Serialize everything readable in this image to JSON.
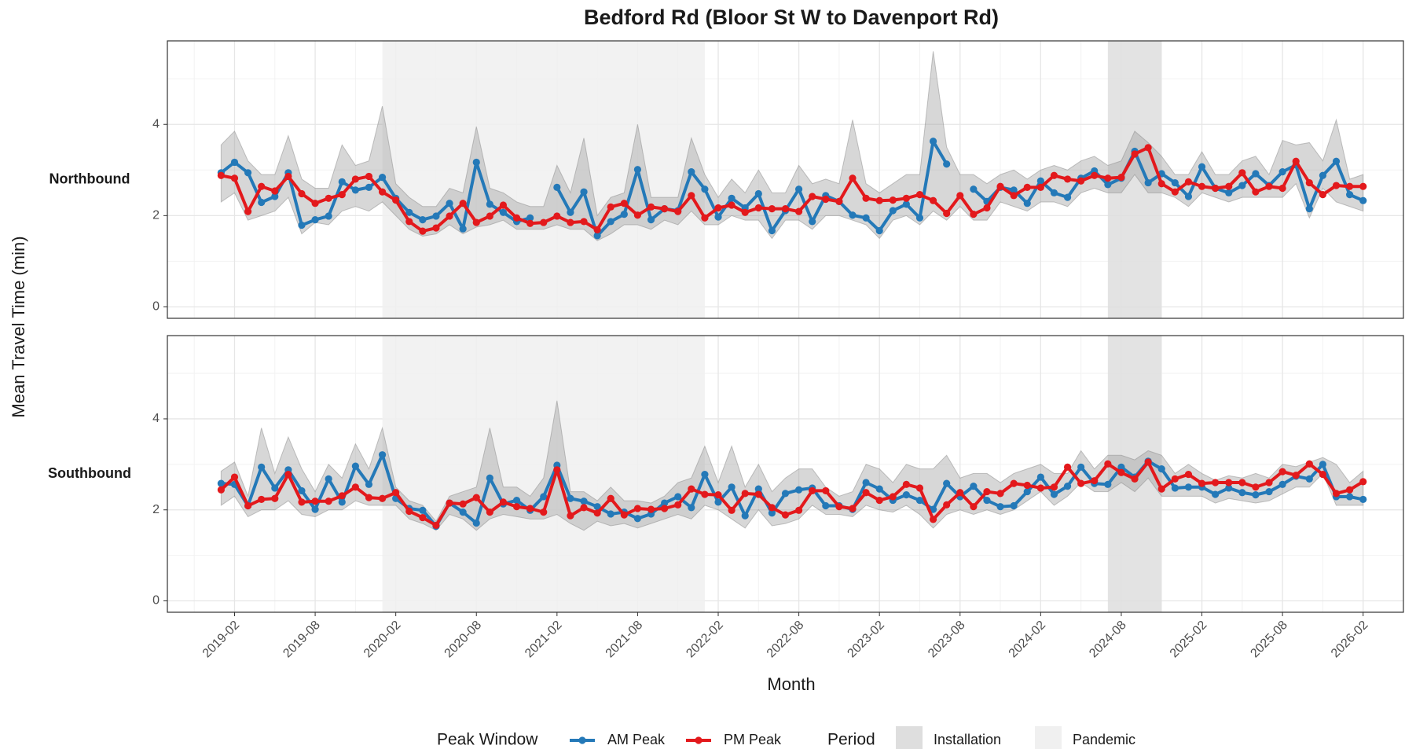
{
  "chart_data": {
    "type": "line",
    "title": "Bedford Rd (Bloor St W to Davenport Rd)",
    "x_label": "Month",
    "y_label": "Mean Travel Time (min)",
    "x": [
      "2019-01",
      "2019-02",
      "2019-03",
      "2019-04",
      "2019-05",
      "2019-06",
      "2019-07",
      "2019-08",
      "2019-09",
      "2019-10",
      "2019-11",
      "2019-12",
      "2020-01",
      "2020-02",
      "2020-03",
      "2020-04",
      "2020-05",
      "2020-06",
      "2020-07",
      "2020-08",
      "2020-09",
      "2020-10",
      "2020-11",
      "2020-12",
      "2021-01",
      "2021-02",
      "2021-03",
      "2021-04",
      "2021-05",
      "2021-06",
      "2021-07",
      "2021-08",
      "2021-09",
      "2021-10",
      "2021-11",
      "2021-12",
      "2022-01",
      "2022-02",
      "2022-03",
      "2022-04",
      "2022-05",
      "2022-06",
      "2022-07",
      "2022-08",
      "2022-09",
      "2022-10",
      "2022-11",
      "2022-12",
      "2023-01",
      "2023-02",
      "2023-03",
      "2023-04",
      "2023-05",
      "2023-06",
      "2023-07",
      "2023-08",
      "2023-09",
      "2023-10",
      "2023-11",
      "2023-12",
      "2024-01",
      "2024-02",
      "2024-03",
      "2024-04",
      "2024-05",
      "2024-06",
      "2024-07",
      "2024-08",
      "2024-09",
      "2024-10",
      "2024-11",
      "2024-12",
      "2025-01",
      "2025-02",
      "2025-03",
      "2025-04",
      "2025-05",
      "2025-06",
      "2025-07",
      "2025-08",
      "2025-09",
      "2025-10",
      "2025-11",
      "2025-12",
      "2026-01",
      "2026-02"
    ],
    "xlim": [
      "2018-09",
      "2026-05"
    ],
    "xticks": [
      "2019-02",
      "2019-08",
      "2020-02",
      "2020-08",
      "2021-02",
      "2021-08",
      "2022-02",
      "2022-08",
      "2023-02",
      "2023-08",
      "2024-02",
      "2024-08",
      "2025-02",
      "2025-08",
      "2026-02"
    ],
    "grid": true,
    "legend_title": "Peak Window",
    "period_legend_title": "Period",
    "periods": [
      {
        "name": "Installation",
        "start": "2024-07",
        "end": "2024-11",
        "color": "#dedede"
      },
      {
        "name": "Pandemic",
        "start": "2020-01",
        "end": "2022-01",
        "color": "#f0f0f0"
      }
    ],
    "panels": [
      {
        "label": "Northbound",
        "ylim": [
          -0.25,
          5.83
        ],
        "yticks": [
          0,
          2,
          4
        ],
        "band_upper": [
          3.55,
          3.85,
          3.2,
          2.9,
          2.9,
          3.75,
          2.8,
          2.6,
          2.6,
          3.55,
          3.1,
          3.2,
          4.4,
          2.7,
          2.4,
          2.2,
          2.2,
          2.6,
          2.5,
          3.95,
          2.6,
          2.5,
          2.3,
          2.2,
          2.2,
          3.1,
          2.5,
          3.7,
          2.0,
          2.4,
          2.5,
          4.0,
          2.4,
          2.4,
          2.4,
          3.7,
          2.9,
          2.4,
          2.8,
          2.5,
          3.0,
          2.5,
          2.5,
          3.1,
          2.7,
          2.8,
          2.7,
          4.1,
          2.7,
          2.5,
          2.7,
          2.9,
          2.9,
          5.6,
          3.5,
          2.9,
          2.9,
          2.7,
          2.9,
          3.0,
          2.8,
          3.0,
          3.1,
          3.0,
          3.2,
          3.3,
          3.1,
          3.2,
          3.85,
          3.6,
          3.3,
          2.9,
          2.9,
          3.4,
          2.9,
          2.9,
          3.2,
          3.3,
          2.9,
          3.65,
          3.55,
          3.6,
          3.2,
          4.1,
          2.8,
          2.9
        ],
        "band_lower": [
          2.3,
          2.5,
          1.9,
          2.0,
          2.1,
          2.4,
          1.6,
          1.85,
          1.8,
          2.1,
          2.2,
          2.1,
          2.3,
          2.0,
          1.7,
          1.55,
          1.6,
          1.8,
          1.6,
          1.75,
          1.8,
          1.9,
          1.7,
          1.7,
          1.7,
          1.8,
          1.7,
          1.7,
          1.45,
          1.6,
          1.8,
          1.8,
          1.7,
          1.9,
          1.8,
          2.1,
          1.8,
          1.8,
          2.0,
          1.9,
          1.9,
          1.5,
          1.9,
          1.9,
          1.7,
          2.0,
          2.0,
          1.9,
          1.8,
          1.5,
          1.9,
          2.0,
          1.8,
          2.1,
          1.9,
          2.2,
          1.9,
          1.9,
          2.3,
          2.2,
          2.1,
          2.3,
          2.3,
          2.2,
          2.5,
          2.6,
          2.5,
          2.5,
          2.9,
          2.5,
          2.5,
          2.4,
          2.2,
          2.5,
          2.4,
          2.3,
          2.4,
          2.4,
          2.4,
          2.4,
          2.7,
          1.95,
          2.6,
          2.3,
          2.2,
          2.1
        ],
        "series": [
          {
            "name": "AM Peak",
            "color": "#2479b8",
            "values": [
              2.94,
              3.17,
              2.94,
              2.29,
              2.42,
              2.94,
              1.79,
              1.91,
              1.99,
              2.74,
              2.56,
              2.62,
              2.84,
              2.38,
              2.07,
              1.91,
              1.99,
              2.27,
              1.71,
              3.17,
              2.25,
              2.07,
              1.87,
              1.95,
              null,
              2.62,
              2.07,
              2.52,
              1.56,
              1.87,
              2.03,
              3.01,
              1.91,
              2.15,
              2.11,
              2.96,
              2.58,
              1.97,
              2.38,
              2.17,
              2.48,
              1.67,
              2.11,
              2.58,
              1.87,
              2.44,
              2.31,
              2.01,
              1.95,
              1.67,
              2.11,
              2.25,
              1.95,
              3.63,
              3.13,
              null,
              2.58,
              2.31,
              2.62,
              2.56,
              2.27,
              2.76,
              2.5,
              2.4,
              2.82,
              2.98,
              2.68,
              2.82,
              3.41,
              2.72,
              2.92,
              2.72,
              2.42,
              3.07,
              2.6,
              2.5,
              2.66,
              2.92,
              2.66,
              2.96,
              3.11,
              2.15,
              2.88,
              3.19,
              2.46,
              2.33
            ]
          },
          {
            "name": "PM Peak",
            "color": "#e3191c",
            "values": [
              2.88,
              2.82,
              2.09,
              2.64,
              2.54,
              2.86,
              2.48,
              2.27,
              2.38,
              2.46,
              2.8,
              2.86,
              2.52,
              2.34,
              1.87,
              1.66,
              1.73,
              1.99,
              2.27,
              1.85,
              1.99,
              2.23,
              1.95,
              1.83,
              1.85,
              1.99,
              1.85,
              1.87,
              1.69,
              2.19,
              2.27,
              2.01,
              2.19,
              2.15,
              2.09,
              2.44,
              1.95,
              2.17,
              2.23,
              2.07,
              2.17,
              2.15,
              2.15,
              2.09,
              2.42,
              2.36,
              2.31,
              2.82,
              2.38,
              2.33,
              2.34,
              2.38,
              2.46,
              2.33,
              2.05,
              2.44,
              2.03,
              2.17,
              2.64,
              2.44,
              2.62,
              2.62,
              2.88,
              2.8,
              2.76,
              2.88,
              2.82,
              2.84,
              3.35,
              3.49,
              2.7,
              2.52,
              2.74,
              2.64,
              2.6,
              2.64,
              2.94,
              2.52,
              2.64,
              2.6,
              3.19,
              2.72,
              2.46,
              2.66,
              2.64,
              2.64
            ]
          }
        ]
      },
      {
        "label": "Southbound",
        "ylim": [
          -0.25,
          5.83
        ],
        "yticks": [
          0,
          2,
          4
        ],
        "band_upper": [
          2.85,
          3.05,
          2.3,
          3.8,
          2.8,
          3.6,
          2.9,
          2.4,
          3.0,
          2.7,
          3.45,
          2.9,
          3.8,
          2.5,
          2.2,
          2.1,
          1.75,
          2.3,
          2.4,
          2.5,
          3.8,
          2.5,
          2.5,
          2.3,
          2.7,
          4.4,
          2.4,
          2.4,
          2.2,
          2.5,
          2.2,
          2.2,
          2.15,
          2.3,
          2.6,
          2.7,
          3.4,
          2.6,
          3.4,
          2.5,
          3.0,
          2.4,
          2.7,
          2.9,
          2.9,
          2.5,
          2.3,
          2.4,
          3.0,
          2.9,
          2.6,
          3.0,
          2.9,
          2.9,
          3.2,
          2.7,
          2.8,
          2.8,
          2.6,
          2.8,
          2.9,
          3.0,
          2.8,
          2.8,
          3.3,
          2.9,
          3.2,
          3.2,
          3.1,
          3.3,
          3.2,
          2.8,
          3.0,
          2.8,
          2.65,
          2.75,
          2.7,
          2.8,
          2.7,
          3.0,
          2.95,
          3.05,
          3.15,
          3.0,
          2.6,
          2.85
        ],
        "band_lower": [
          2.1,
          2.3,
          1.85,
          2.0,
          2.0,
          2.2,
          1.9,
          1.85,
          2.0,
          2.0,
          2.2,
          2.1,
          2.1,
          2.1,
          1.8,
          1.7,
          1.55,
          1.9,
          1.8,
          1.55,
          1.8,
          1.9,
          1.85,
          1.8,
          1.8,
          1.9,
          1.7,
          1.55,
          1.75,
          1.65,
          1.7,
          1.6,
          1.7,
          1.8,
          1.9,
          1.8,
          2.1,
          2.0,
          1.8,
          1.6,
          2.0,
          1.65,
          1.7,
          1.8,
          2.1,
          1.9,
          1.9,
          1.85,
          2.1,
          2.0,
          1.95,
          2.1,
          1.9,
          1.6,
          1.9,
          2.0,
          1.9,
          2.0,
          1.9,
          2.0,
          2.2,
          2.4,
          2.1,
          2.3,
          2.6,
          2.4,
          2.4,
          2.6,
          2.4,
          2.7,
          2.3,
          2.3,
          2.3,
          2.3,
          2.15,
          2.25,
          2.2,
          2.15,
          2.2,
          2.35,
          2.5,
          2.5,
          2.8,
          2.1,
          2.1,
          2.1
        ],
        "series": [
          {
            "name": "AM Peak",
            "color": "#2479b8",
            "values": [
              2.58,
              2.56,
              2.09,
              2.94,
              2.48,
              2.88,
              2.42,
              2.01,
              2.68,
              2.17,
              2.96,
              2.56,
              3.21,
              2.25,
              2.03,
              1.99,
              1.64,
              2.15,
              1.95,
              1.71,
              2.7,
              2.13,
              2.21,
              1.99,
              2.29,
              2.98,
              2.25,
              2.19,
              2.07,
              1.91,
              1.95,
              1.81,
              1.91,
              2.15,
              2.29,
              2.05,
              2.78,
              2.17,
              2.5,
              1.87,
              2.46,
              1.93,
              2.36,
              2.44,
              2.48,
              2.09,
              2.09,
              2.01,
              2.6,
              2.46,
              2.21,
              2.33,
              2.21,
              2.01,
              2.58,
              2.29,
              2.52,
              2.21,
              2.07,
              2.09,
              2.4,
              2.72,
              2.34,
              2.52,
              2.94,
              2.58,
              2.56,
              2.94,
              2.72,
              3.07,
              2.9,
              2.48,
              2.5,
              2.5,
              2.34,
              2.48,
              2.38,
              2.33,
              2.4,
              2.56,
              2.74,
              2.68,
              3.0,
              2.29,
              2.29,
              2.23
            ]
          },
          {
            "name": "PM Peak",
            "color": "#e3191c",
            "values": [
              2.44,
              2.72,
              2.09,
              2.23,
              2.25,
              2.78,
              2.17,
              2.19,
              2.19,
              2.31,
              2.5,
              2.27,
              2.25,
              2.38,
              1.97,
              1.83,
              1.66,
              2.15,
              2.13,
              2.27,
              1.95,
              2.17,
              2.07,
              2.03,
              1.95,
              2.88,
              1.87,
              2.05,
              1.93,
              2.25,
              1.89,
              2.03,
              2.01,
              2.03,
              2.11,
              2.46,
              2.34,
              2.33,
              1.99,
              2.36,
              2.34,
              2.05,
              1.89,
              1.99,
              2.42,
              2.42,
              2.07,
              2.03,
              2.38,
              2.21,
              2.29,
              2.56,
              2.48,
              1.79,
              2.11,
              2.38,
              2.07,
              2.4,
              2.36,
              2.58,
              2.54,
              2.48,
              2.5,
              2.94,
              2.58,
              2.64,
              3.01,
              2.82,
              2.68,
              3.05,
              2.46,
              2.68,
              2.78,
              2.58,
              2.6,
              2.6,
              2.6,
              2.5,
              2.6,
              2.84,
              2.76,
              3.01,
              2.78,
              2.36,
              2.44,
              2.62
            ]
          }
        ]
      }
    ]
  }
}
